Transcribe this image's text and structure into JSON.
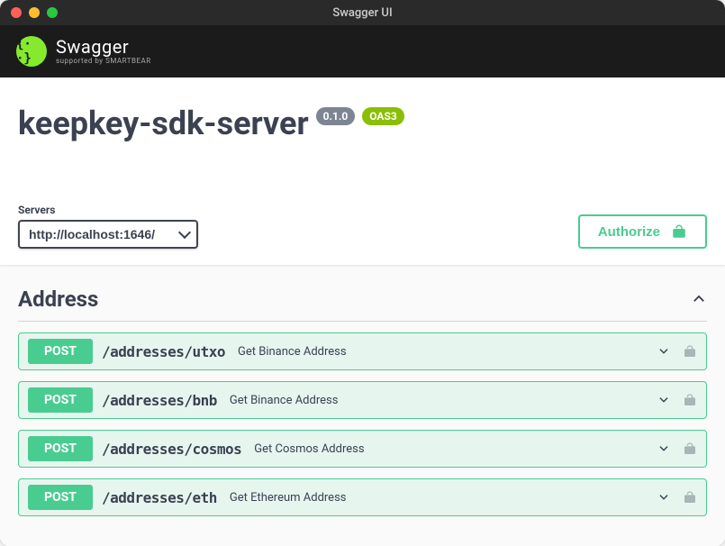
{
  "window": {
    "title": "Swagger UI"
  },
  "brand": {
    "logo_glyph": "{· ·}",
    "name": "Swagger",
    "supported_by": "supported by SMARTBEAR",
    "logo_bg": "#85ea2d"
  },
  "api": {
    "title": "keepkey-sdk-server",
    "version": "0.1.0",
    "oas_label": "OAS3"
  },
  "servers": {
    "label": "Servers",
    "selected": "http://localhost:1646/"
  },
  "auth": {
    "authorize_label": "Authorize"
  },
  "tag": {
    "name": "Address",
    "expanded": true
  },
  "operations": [
    {
      "method": "POST",
      "path": "/addresses/utxo",
      "summary": "Get Binance Address"
    },
    {
      "method": "POST",
      "path": "/addresses/bnb",
      "summary": "Get Binance Address"
    },
    {
      "method": "POST",
      "path": "/addresses/cosmos",
      "summary": "Get Cosmos Address"
    },
    {
      "method": "POST",
      "path": "/addresses/eth",
      "summary": "Get Ethereum Address"
    }
  ],
  "colors": {
    "post": "#49cc90",
    "text": "#3b4151",
    "topbar": "#1b1b1b",
    "oas_badge": "#89bf04",
    "version_badge": "#7d8492"
  }
}
